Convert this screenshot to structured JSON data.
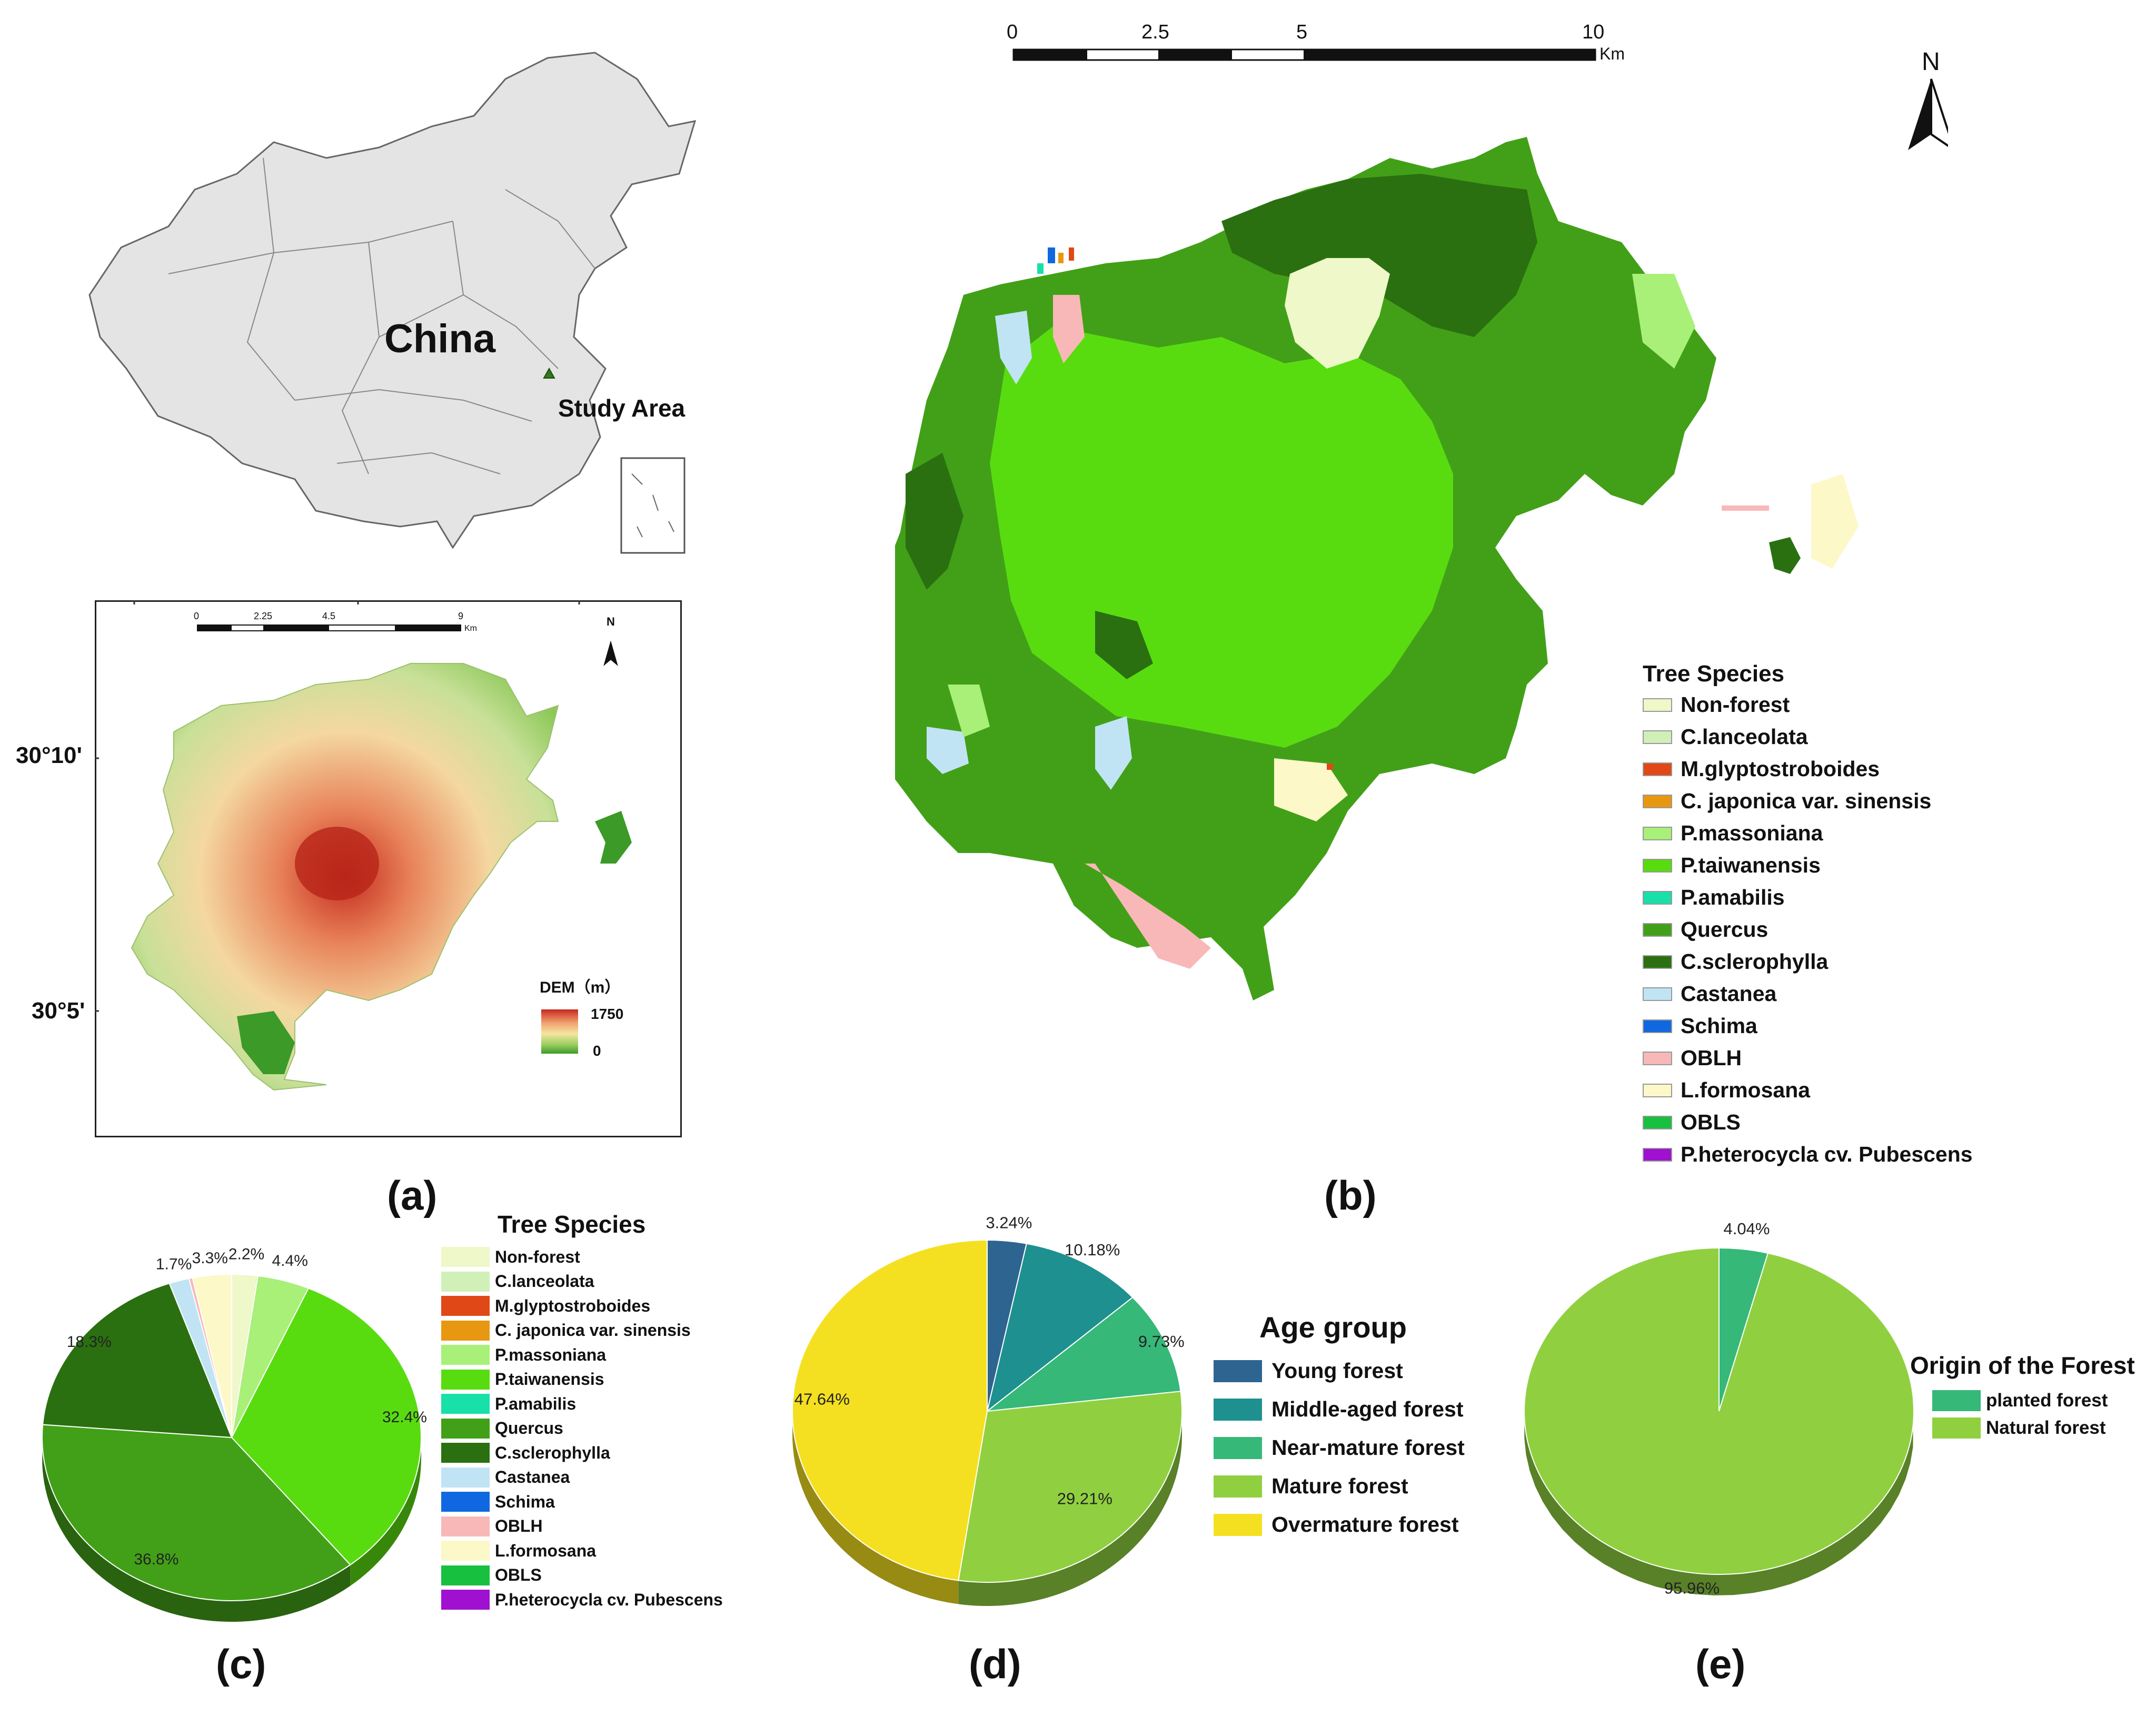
{
  "panel_labels": {
    "a": "(a)",
    "b": "(b)",
    "c": "(c)",
    "d": "(d)",
    "e": "(e)"
  },
  "china_map": {
    "country_label": "China",
    "study_area_label": "Study Area"
  },
  "dem_map": {
    "scale_ticks": [
      "0",
      "2.25",
      "4.5",
      "9"
    ],
    "scale_unit": "Km",
    "north_label": "N",
    "lat_labels": [
      "30°10'",
      "30°5'"
    ],
    "legend_title": "DEM（m）",
    "legend_max": "1750",
    "legend_min": "0",
    "gradient_colors": [
      "#c8281e",
      "#f0a070",
      "#f5e6a0",
      "#9acd60",
      "#3c9a28"
    ]
  },
  "species_map": {
    "scale_ticks": [
      "0",
      "2.5",
      "5",
      "10"
    ],
    "scale_unit": "Km",
    "north_label": "N",
    "legend_title": "Tree Species",
    "legend_items": [
      {
        "label": "Non-forest",
        "color": "#eef8c8"
      },
      {
        "label": "C.lanceolata",
        "color": "#d0f0b8"
      },
      {
        "label": "M.glyptostroboides",
        "color": "#e04818"
      },
      {
        "label": "C. japonica var. sinensis",
        "color": "#e89810"
      },
      {
        "label": "P.massoniana",
        "color": "#a8f078"
      },
      {
        "label": "P.taiwanensis",
        "color": "#58dc10"
      },
      {
        "label": "P.amabilis",
        "color": "#18e0a8"
      },
      {
        "label": "Quercus",
        "color": "#42a018"
      },
      {
        "label": "C.sclerophylla",
        "color": "#2a7010"
      },
      {
        "label": "Castanea",
        "color": "#c0e4f4"
      },
      {
        "label": "Schima",
        "color": "#1068e0"
      },
      {
        "label": "OBLH",
        "color": "#f8b8b8"
      },
      {
        "label": "L.formosana",
        "color": "#fcf8c8"
      },
      {
        "label": "OBLS",
        "color": "#18c040"
      },
      {
        "label": "P.heterocycla cv. Pubescens",
        "color": "#a010d0"
      }
    ]
  },
  "chart_data": [
    {
      "type": "pie",
      "id": "c",
      "legend_title": "Tree Species",
      "slices": [
        {
          "label": "Non-forest",
          "value": 2.2,
          "display": "2.2%",
          "color": "#eef8c8"
        },
        {
          "label": "C.lanceolata",
          "value": 0,
          "display": "",
          "color": "#d0f0b8"
        },
        {
          "label": "M.glyptostroboides",
          "value": 0,
          "display": "",
          "color": "#e04818"
        },
        {
          "label": "C. japonica var. sinensis",
          "value": 0,
          "display": "",
          "color": "#e89810"
        },
        {
          "label": "P.massoniana",
          "value": 4.4,
          "display": "4.4%",
          "color": "#a8f078"
        },
        {
          "label": "P.taiwanensis",
          "value": 32.4,
          "display": "32.4%",
          "color": "#58dc10"
        },
        {
          "label": "P.amabilis",
          "value": 0,
          "display": "",
          "color": "#18e0a8"
        },
        {
          "label": "Quercus",
          "value": 36.8,
          "display": "36.8%",
          "color": "#42a018"
        },
        {
          "label": "C.sclerophylla",
          "value": 18.3,
          "display": "18.3%",
          "color": "#2a7010"
        },
        {
          "label": "Castanea",
          "value": 1.7,
          "display": "1.7%",
          "color": "#c0e4f4"
        },
        {
          "label": "Schima",
          "value": 0,
          "display": "",
          "color": "#1068e0"
        },
        {
          "label": "OBLH",
          "value": 0.3,
          "display": "",
          "color": "#f8b8b8"
        },
        {
          "label": "L.formosana",
          "value": 3.3,
          "display": "3.3%",
          "color": "#fcf8c8"
        },
        {
          "label": "OBLS",
          "value": 0,
          "display": "",
          "color": "#18c040"
        },
        {
          "label": "P.heterocycla cv. Pubescens",
          "value": 0,
          "display": "",
          "color": "#a010d0"
        }
      ]
    },
    {
      "type": "pie",
      "id": "d",
      "legend_title": "Age group",
      "slices": [
        {
          "label": "Young forest",
          "value": 3.24,
          "display": "3.24%",
          "color": "#2e6490"
        },
        {
          "label": "Middle-aged forest",
          "value": 10.18,
          "display": "10.18%",
          "color": "#1e9090"
        },
        {
          "label": "Near-mature forest",
          "value": 9.73,
          "display": "9.73%",
          "color": "#36b878"
        },
        {
          "label": "Mature forest",
          "value": 29.21,
          "display": "29.21%",
          "color": "#90d040"
        },
        {
          "label": "Overmature forest",
          "value": 47.64,
          "display": "47.64%",
          "color": "#f4e020"
        }
      ]
    },
    {
      "type": "pie",
      "id": "e",
      "legend_title": "Origin of the Forest",
      "slices": [
        {
          "label": "planted forest",
          "value": 4.04,
          "display": "4.04%",
          "color": "#36b878"
        },
        {
          "label": "Natural forest",
          "value": 95.96,
          "display": "95.96%",
          "color": "#90d040"
        }
      ]
    }
  ]
}
